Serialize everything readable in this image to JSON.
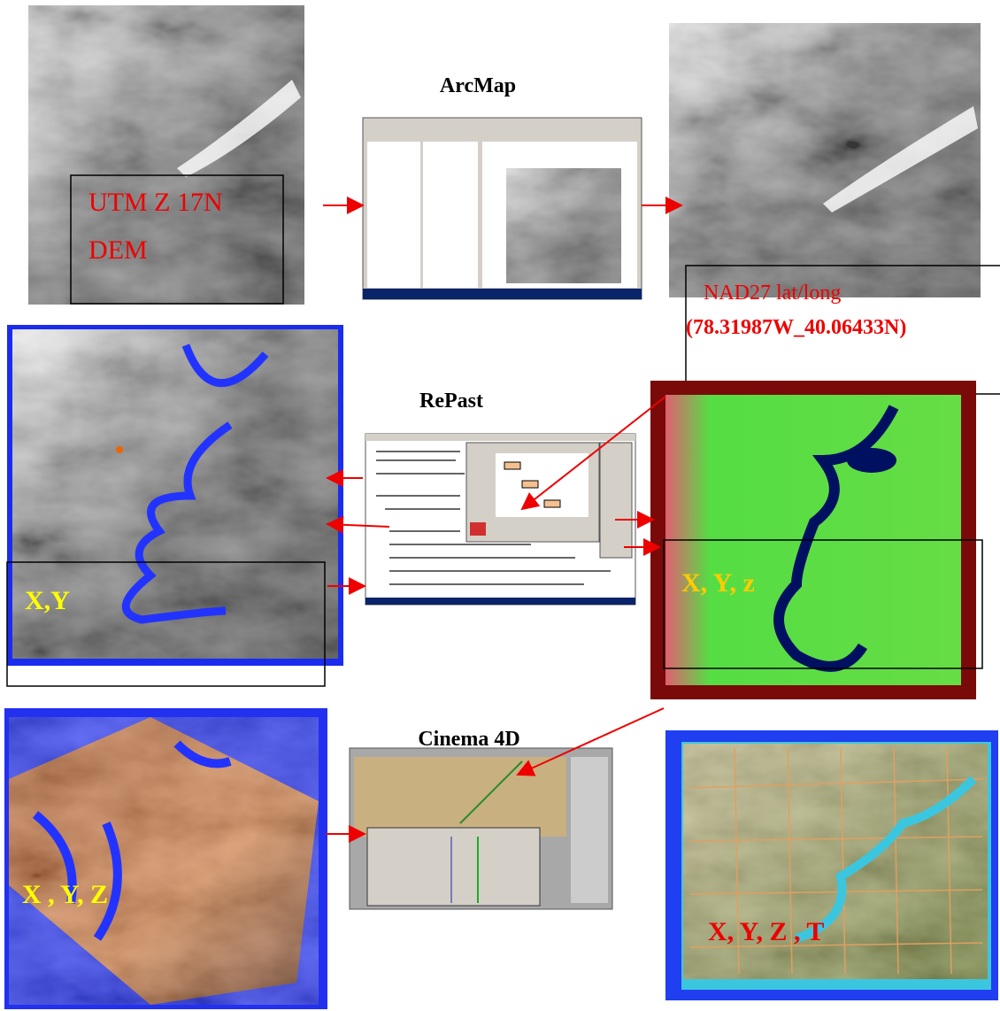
{
  "arcmap": {
    "title": "ArcMap"
  },
  "source_dem": {
    "projection": "UTM  Z 17N",
    "type": "DEM"
  },
  "projected_dem": {
    "datum": "NAD27 lat/long",
    "coords": "(78.31987W_40.06433N)"
  },
  "repast": {
    "title": "RePast"
  },
  "map_2d": {
    "label": "X,Y"
  },
  "map_green": {
    "label": "X, Y, z"
  },
  "cinema4d": {
    "title": "Cinema 4D"
  },
  "map_3d": {
    "label": "X , Y, Z"
  },
  "map_final": {
    "label": "X, Y, Z , T"
  }
}
